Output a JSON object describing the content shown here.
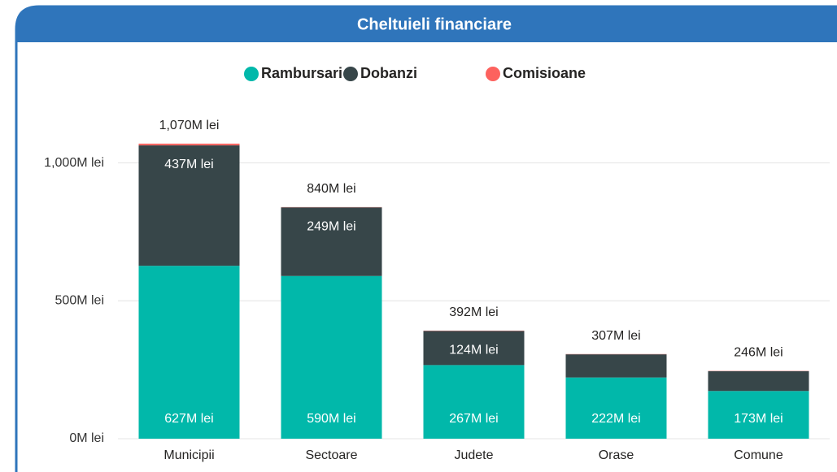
{
  "chart_data": {
    "type": "stacked_bar",
    "title": "Cheltuieli financiare",
    "categories": [
      "Municipii",
      "Sectoare",
      "Judete",
      "Orase",
      "Comune"
    ],
    "series": [
      {
        "name": "Rambursari",
        "color": "#01b8aa",
        "values": [
          627,
          590,
          267,
          222,
          173
        ],
        "value_labels": [
          "627M lei",
          "590M lei",
          "267M lei",
          "222M lei",
          "173M lei"
        ]
      },
      {
        "name": "Dobanzi",
        "color": "#374649",
        "values": [
          437,
          249,
          124,
          84,
          72
        ],
        "value_labels": [
          "437M lei",
          "249M lei",
          "124M lei",
          null,
          null
        ]
      },
      {
        "name": "Comisioane",
        "color": "#fd625e",
        "values": [
          6,
          1,
          1,
          1,
          1
        ]
      }
    ],
    "totals": [
      1070,
      840,
      392,
      307,
      246
    ],
    "total_labels": [
      "1,070M lei",
      "840M lei",
      "392M lei",
      "307M lei",
      "246M lei"
    ],
    "ylim": [
      0,
      1090
    ],
    "yticks": [
      {
        "value": 0,
        "label": "0M lei"
      },
      {
        "value": 500,
        "label": "500M lei"
      },
      {
        "value": 1000,
        "label": "1,000M lei"
      }
    ],
    "grid": true,
    "legend": "top"
  }
}
